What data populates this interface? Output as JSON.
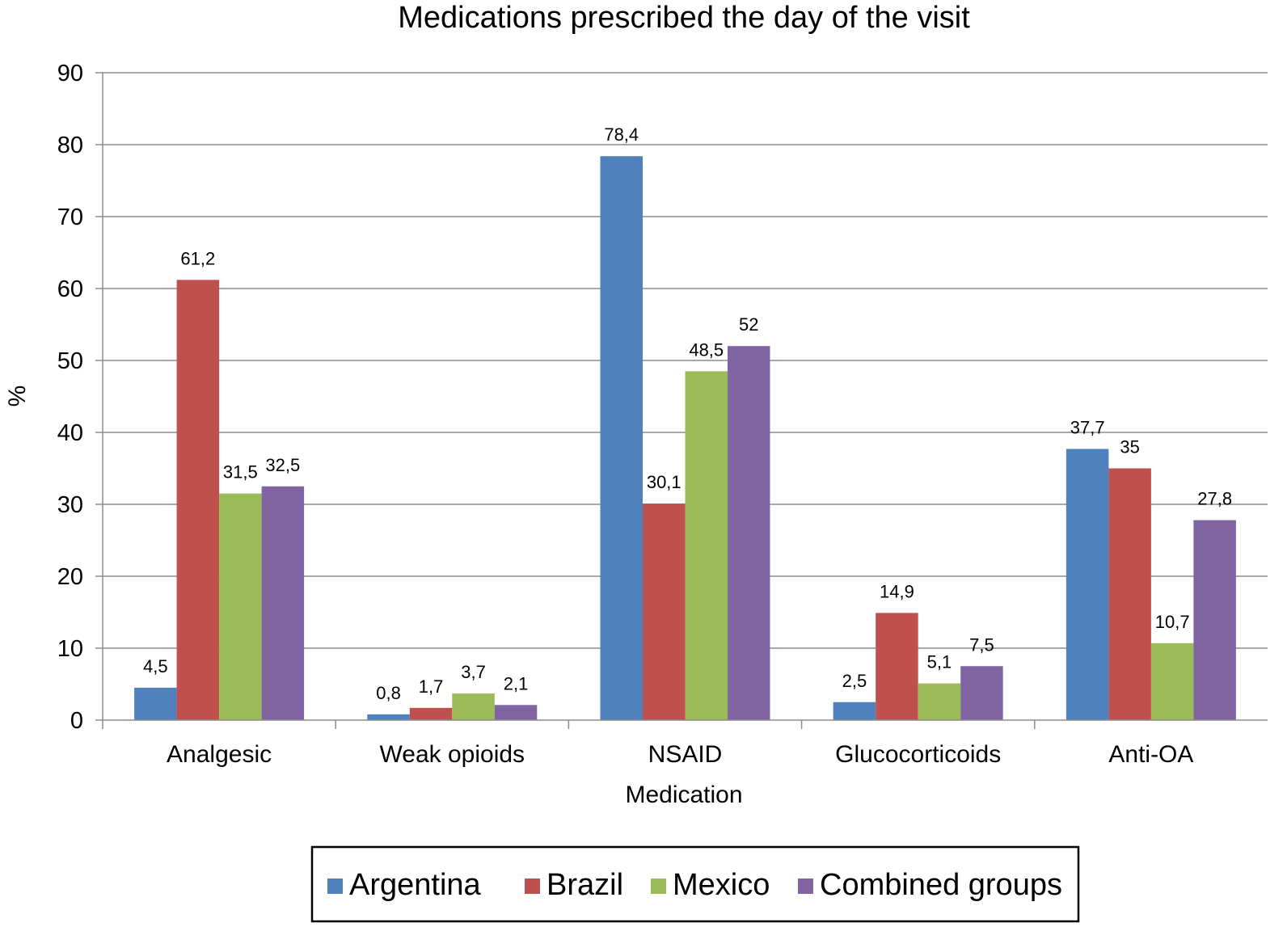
{
  "chart_data": {
    "type": "bar",
    "title": "Medications prescribed the day of the visit",
    "xlabel": "Medication",
    "ylabel": "%",
    "ylim": [
      0,
      90
    ],
    "yticks": [
      0,
      10,
      20,
      30,
      40,
      50,
      60,
      70,
      80,
      90
    ],
    "grid": true,
    "legend_position": "bottom",
    "categories": [
      "Analgesic",
      "Weak opioids",
      "NSAID",
      "Glucocorticoids",
      "Anti-OA"
    ],
    "series": [
      {
        "name": "Argentina",
        "color": "#4F81BD",
        "values": [
          4.5,
          0.8,
          78.4,
          2.5,
          37.7
        ],
        "labels": [
          "4,5",
          "0,8",
          "78,4",
          "2,5",
          "37,7"
        ]
      },
      {
        "name": "Brazil",
        "color": "#C0504D",
        "values": [
          61.2,
          1.7,
          30.1,
          14.9,
          35
        ],
        "labels": [
          "61,2",
          "1,7",
          "30,1",
          "14,9",
          "35"
        ]
      },
      {
        "name": "Mexico",
        "color": "#9BBB59",
        "values": [
          31.5,
          3.7,
          48.5,
          5.1,
          10.7
        ],
        "labels": [
          "31,5",
          "3,7",
          "48,5",
          "5,1",
          "10,7"
        ]
      },
      {
        "name": "Combined groups",
        "color": "#8064A2",
        "values": [
          32.5,
          2.1,
          52,
          7.5,
          27.8
        ],
        "labels": [
          "32,5",
          "2,1",
          "52",
          "7,5",
          "27,8"
        ]
      }
    ]
  }
}
